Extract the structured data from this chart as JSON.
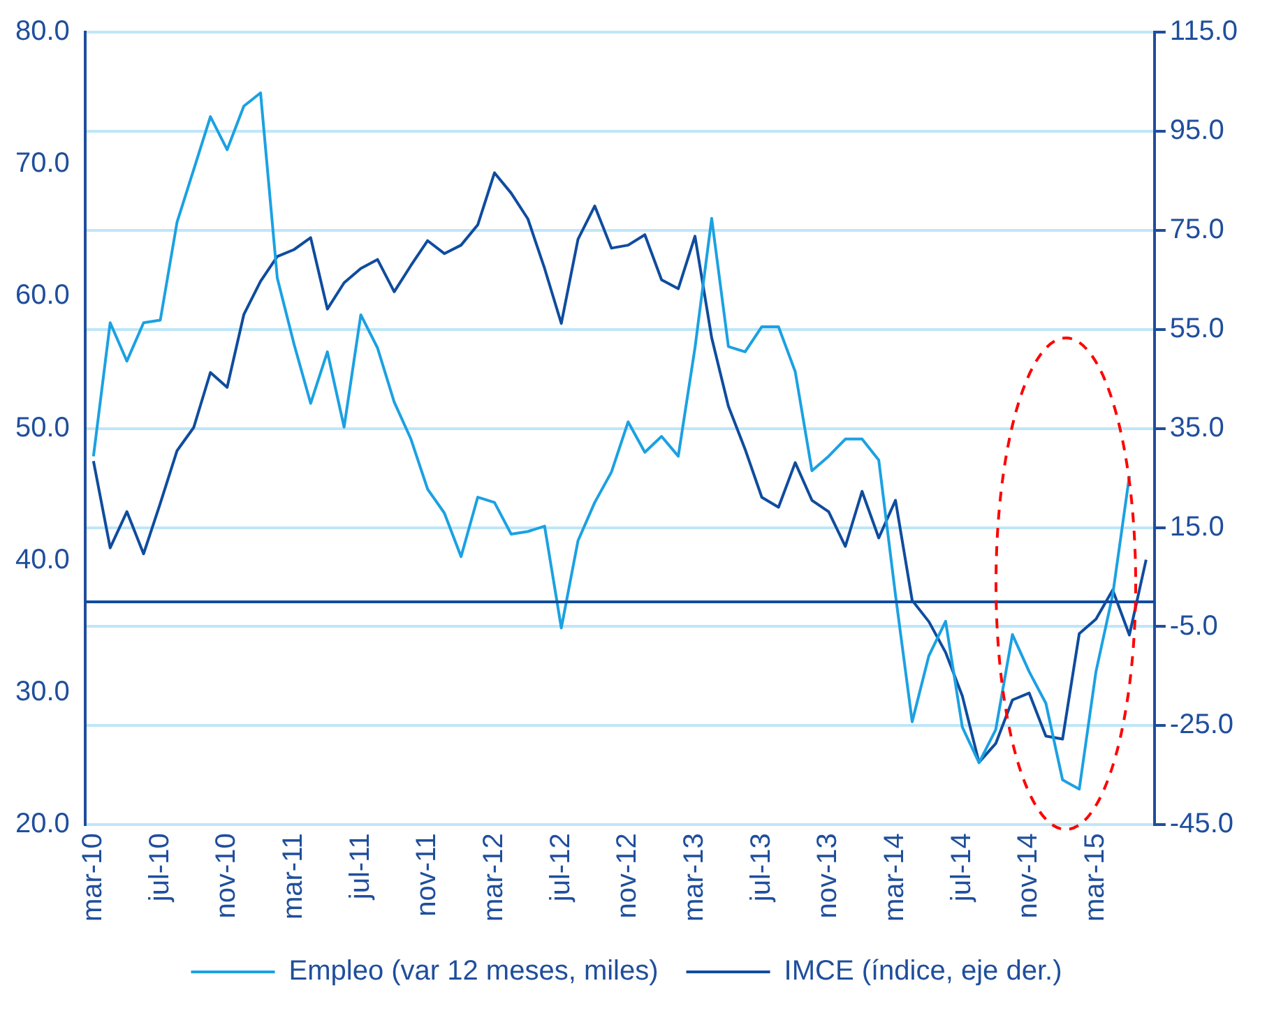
{
  "chart_data": {
    "type": "line",
    "categories": [
      "mar-10",
      null,
      null,
      null,
      "jul-10",
      null,
      null,
      null,
      "nov-10",
      null,
      null,
      null,
      "mar-11",
      null,
      null,
      null,
      "jul-11",
      null,
      null,
      null,
      "nov-11",
      null,
      null,
      null,
      "mar-12",
      null,
      null,
      null,
      "jul-12",
      null,
      null,
      null,
      "nov-12",
      null,
      null,
      null,
      "mar-13",
      null,
      null,
      null,
      "jul-13",
      null,
      null,
      null,
      "nov-13",
      null,
      null,
      null,
      "mar-14",
      null,
      null,
      null,
      "jul-14",
      null,
      null,
      null,
      "nov-14",
      null,
      null,
      null,
      "mar-15",
      null,
      null,
      null
    ],
    "series": [
      {
        "name": "Empleo (var 12 meses, miles)",
        "color": "#1ba1e2",
        "values": [
          47.9,
          58.0,
          55.1,
          58.0,
          58.2,
          65.6,
          69.6,
          73.6,
          71.1,
          74.4,
          75.4,
          61.4,
          56.4,
          51.9,
          55.8,
          50.1,
          58.6,
          56.1,
          52.0,
          49.2,
          45.4,
          43.6,
          40.3,
          44.8,
          44.4,
          42.0,
          42.2,
          42.6,
          34.9,
          41.5,
          44.4,
          46.7,
          50.5,
          48.2,
          49.4,
          47.9,
          56.1,
          65.9,
          56.2,
          55.8,
          57.7,
          57.7,
          54.3,
          46.8,
          47.9,
          49.2,
          49.2,
          47.6,
          37.4,
          27.8,
          32.8,
          35.4,
          27.4,
          24.7,
          27.2,
          34.4,
          31.6,
          29.2,
          23.4,
          22.7,
          31.6,
          37.4,
          46.4,
          null
        ]
      },
      {
        "name": "IMCE (índice, eje der.)",
        "color": "#0f4c9e",
        "axis": "y2",
        "values": [
          28.4,
          10.9,
          18.2,
          9.7,
          19.9,
          30.5,
          35.2,
          46.3,
          43.3,
          58.0,
          64.7,
          69.7,
          71.1,
          73.5,
          59.1,
          64.4,
          67.3,
          69.1,
          62.6,
          67.9,
          72.9,
          70.3,
          72.0,
          76.1,
          86.6,
          82.5,
          77.3,
          67.3,
          56.2,
          73.2,
          79.9,
          71.4,
          72.0,
          74.1,
          65.0,
          63.2,
          73.8,
          53.3,
          39.5,
          30.8,
          21.1,
          19.1,
          28.1,
          20.5,
          18.2,
          11.2,
          22.3,
          12.9,
          20.5,
          0.3,
          -4.0,
          -10.2,
          -19.0,
          -32.4,
          -28.6,
          -19.8,
          -18.4,
          -27.1,
          -27.7,
          -6.4,
          -3.5,
          2.4,
          -6.7,
          8.5
        ]
      }
    ],
    "ylim": [
      20,
      80
    ],
    "yticks": [
      {
        "value": 20,
        "label": "20.0"
      },
      {
        "value": 30,
        "label": "30.0"
      },
      {
        "value": 40,
        "label": "40.0"
      },
      {
        "value": 50,
        "label": "50.0"
      },
      {
        "value": 60,
        "label": "60.0"
      },
      {
        "value": 70,
        "label": "70.0"
      },
      {
        "value": 80,
        "label": "80.0"
      }
    ],
    "y2lim": [
      -45,
      115
    ],
    "y2ticks": [
      {
        "value": -45,
        "label": "-45.0"
      },
      {
        "value": -25,
        "label": "-25.0"
      },
      {
        "value": -5,
        "label": "-5.0"
      },
      {
        "value": 15,
        "label": "15.0"
      },
      {
        "value": 35,
        "label": "35.0"
      },
      {
        "value": 55,
        "label": "55.0"
      },
      {
        "value": 75,
        "label": "75.0"
      },
      {
        "value": 95,
        "label": "95.0"
      },
      {
        "value": 115,
        "label": "115.0"
      }
    ],
    "ref_lines": [
      {
        "axis": "y2",
        "value": 0,
        "color": "#0f4c9e"
      }
    ],
    "grid": "y2",
    "legend": "bottom",
    "marker": "none",
    "line_style": "solid"
  }
}
